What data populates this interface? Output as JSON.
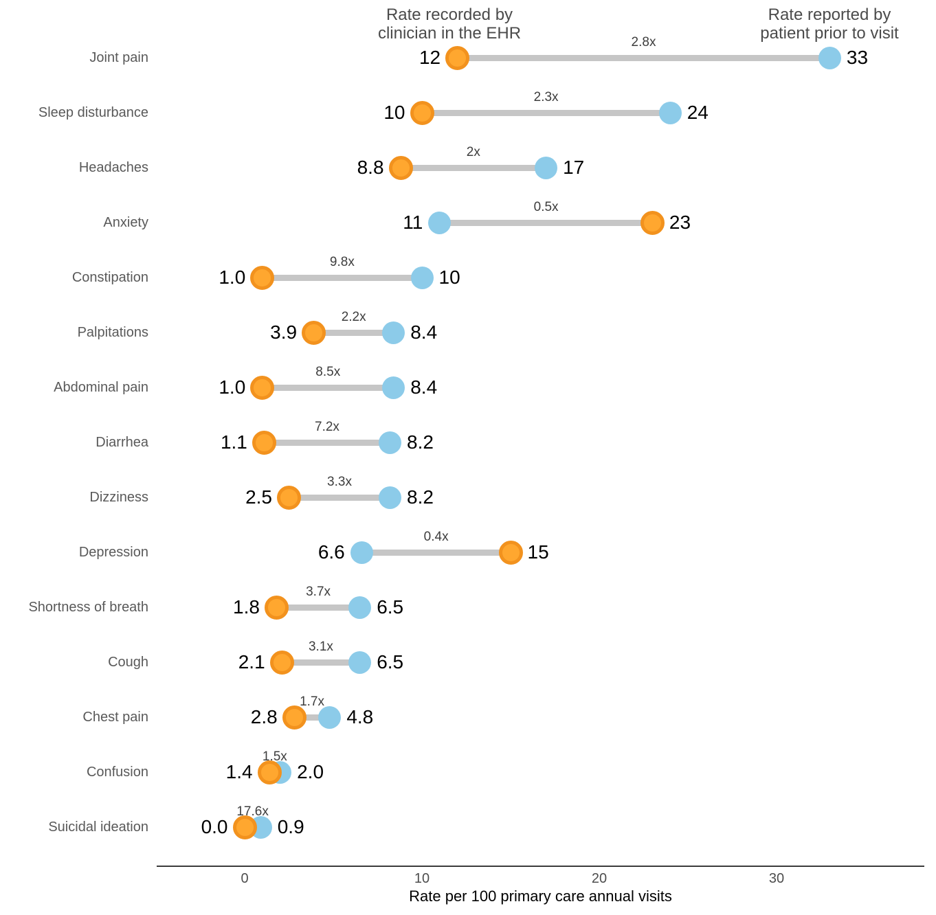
{
  "colors": {
    "clinician_fill": "#FFA72F",
    "clinician_ring": "#F2921E",
    "patient_fill": "#8CCBE9",
    "connector": "#C6C6C6",
    "category_text": "#595959",
    "ratio_text": "#3D3D3D",
    "header_text": "#4B4B4B",
    "axis_line": "#3A3A3A",
    "tick_text": "#4D4D4D",
    "axis_title_text": "#000000",
    "value_text": "#000000"
  },
  "chart_data": {
    "type": "dumbbell",
    "xlabel": "Rate per 100 primary care annual visits",
    "x_tick_labels": [
      "0",
      "10",
      "20",
      "30"
    ],
    "x_tick_values": [
      0,
      10,
      20,
      30
    ],
    "xlim": [
      -5,
      38.3
    ],
    "grid": "off",
    "legend_position": "top-annotations",
    "header_left": {
      "lines": [
        "Rate recorded by",
        "clinician in the EHR"
      ]
    },
    "header_right": {
      "lines": [
        "Rate reported by",
        "patient prior to visit"
      ]
    },
    "categories": [
      "Joint pain",
      "Sleep disturbance",
      "Headaches",
      "Anxiety",
      "Constipation",
      "Palpitations",
      "Abdominal pain",
      "Diarrhea",
      "Dizziness",
      "Depression",
      "Shortness of breath",
      "Cough",
      "Chest pain",
      "Confusion",
      "Suicidal ideation"
    ],
    "series": [
      {
        "name": "Rate recorded by clinician in the EHR",
        "key": "clinician",
        "marker_color": "#FFA72F",
        "values": [
          12,
          10,
          8.8,
          23,
          1.0,
          3.9,
          1.0,
          1.1,
          2.5,
          15,
          1.8,
          2.1,
          2.8,
          1.4,
          0.0
        ],
        "labels": [
          "12",
          "10",
          "8.8",
          "23",
          "1.0",
          "3.9",
          "1.0",
          "1.1",
          "2.5",
          "15",
          "1.8",
          "2.1",
          "2.8",
          "1.4",
          "0.0"
        ]
      },
      {
        "name": "Rate reported by patient prior to visit",
        "key": "patient",
        "marker_color": "#8CCBE9",
        "values": [
          33,
          24,
          17,
          11,
          10,
          8.4,
          8.4,
          8.2,
          8.2,
          6.6,
          6.5,
          6.5,
          4.8,
          2.0,
          0.9
        ],
        "labels": [
          "33",
          "24",
          "17",
          "11",
          "10",
          "8.4",
          "8.4",
          "8.2",
          "8.2",
          "6.6",
          "6.5",
          "6.5",
          "4.8",
          "2.0",
          "0.9"
        ]
      }
    ],
    "ratio_labels": [
      "2.8x",
      "2.3x",
      "2x",
      "0.5x",
      "9.8x",
      "2.2x",
      "8.5x",
      "7.2x",
      "3.3x",
      "0.4x",
      "3.7x",
      "3.1x",
      "1.7x",
      "1.5x",
      "17.6x"
    ]
  }
}
